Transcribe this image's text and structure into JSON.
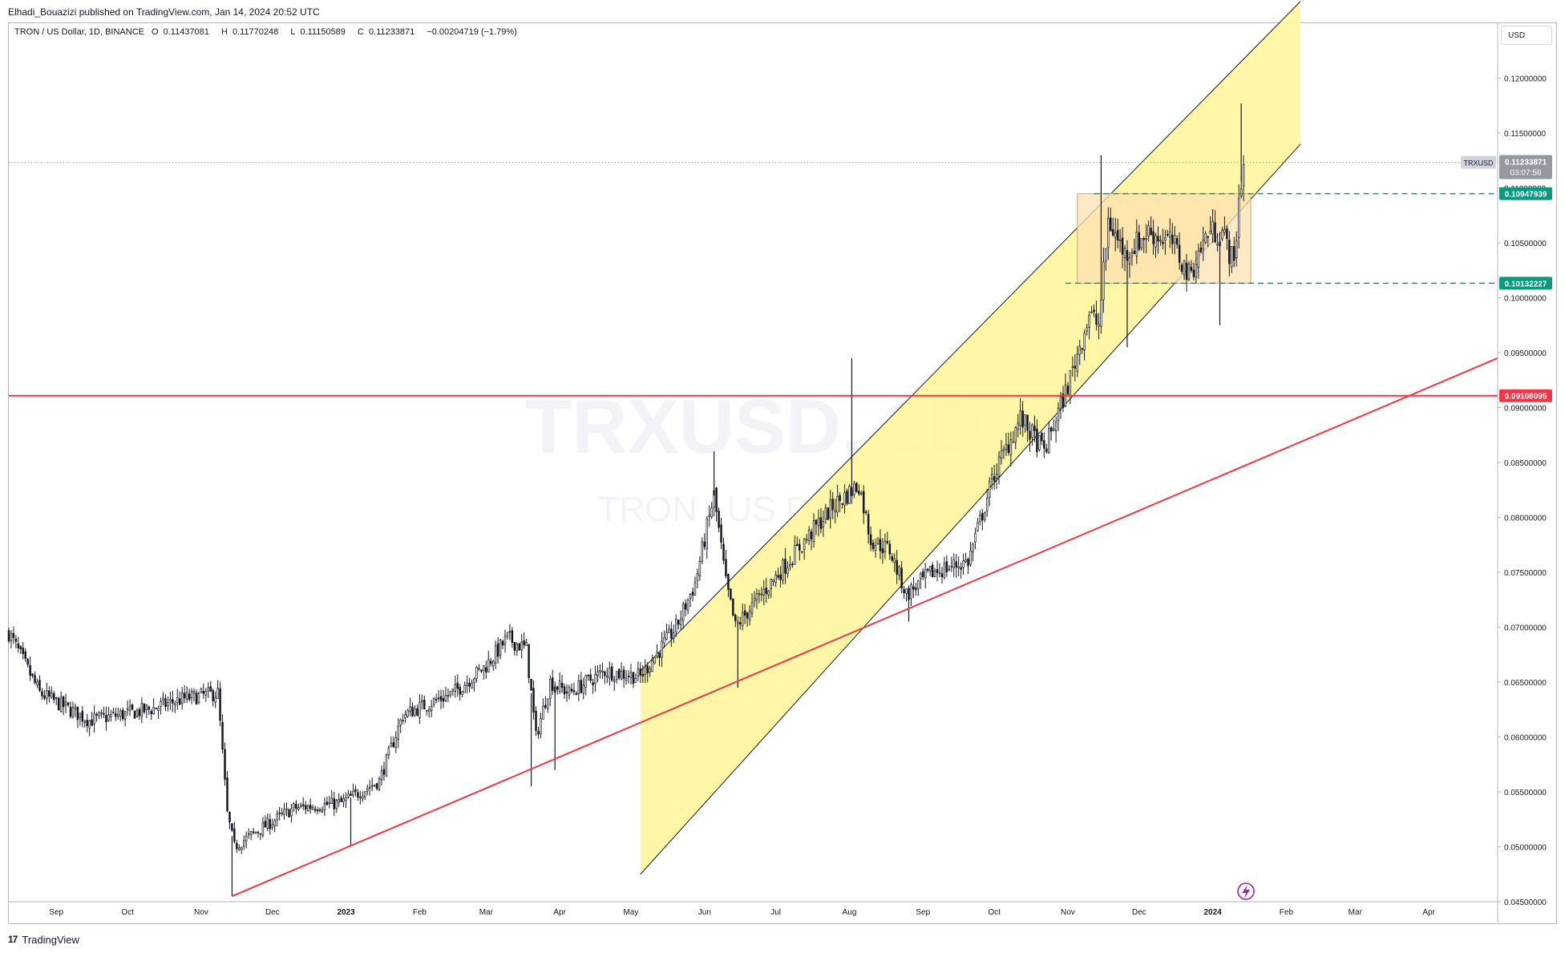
{
  "header": {
    "published_by": "Elhadi_Bouazizi published on TradingView.com, Jan 14, 2024 20:52 UTC"
  },
  "legend": {
    "symbol_desc": "TRON / US Dollar, 1D, BINANCE",
    "open_label": "O",
    "open": "0.11437081",
    "high_label": "H",
    "high": "0.11770248",
    "low_label": "L",
    "low": "0.11150589",
    "close_label": "C",
    "close": "0.11233871",
    "change": "−0.00204719 (−1.79%)"
  },
  "watermark": {
    "symbol": "TRXUSD, 1D",
    "name": "TRON / US Dollar"
  },
  "currency": "USD",
  "footer": {
    "brand": "TradingView",
    "logo": "17"
  },
  "colors": {
    "up": "#131722",
    "down": "#131722",
    "channel_fill": "#fff59d",
    "channel_line": "#131722",
    "box_fill": "#ffe0b2",
    "box_inner": "#ffcc80",
    "red_line": "#f23645",
    "dashed": "#089981",
    "current_price_bg": "#9598a1",
    "level_bg": "#089981",
    "red_bg": "#f23645"
  },
  "price_scale": {
    "ticks": [
      "0.12000000",
      "0.11500000",
      "0.11000000",
      "0.10500000",
      "0.10000000",
      "0.09500000",
      "0.09000000",
      "0.08500000",
      "0.08000000",
      "0.07500000",
      "0.07000000",
      "0.06500000",
      "0.06000000",
      "0.05500000",
      "0.05000000",
      "0.04500000"
    ],
    "current_symbol": "TRXUSD",
    "current_price": "0.11233871",
    "countdown": "03:07:56",
    "level_upper": "0.10947939",
    "level_lower": "0.10132227",
    "level_red": "0.09108095"
  },
  "time_scale": {
    "labels": [
      "Sep",
      "Oct",
      "Nov",
      "Dec",
      "2023",
      "Feb",
      "Mar",
      "Apr",
      "May",
      "Jun",
      "Jul",
      "Aug",
      "Sep",
      "Oct",
      "Nov",
      "Dec",
      "2024",
      "Feb",
      "Mar",
      "Apr"
    ],
    "bold": [
      "2023",
      "2024"
    ]
  },
  "chart_data": {
    "type": "candlestick",
    "symbol": "TRXUSD",
    "timeframe": "1D",
    "exchange": "BINANCE",
    "ylim": [
      0.045,
      0.125
    ],
    "x_range": [
      "2022-08-12",
      "2024-04-30"
    ],
    "price_path": [
      [
        "2022-08-12",
        0.0695
      ],
      [
        "2022-08-25",
        0.064
      ],
      [
        "2022-09-15",
        0.0615
      ],
      [
        "2022-10-10",
        0.0625
      ],
      [
        "2022-10-25",
        0.0635
      ],
      [
        "2022-11-08",
        0.064
      ],
      [
        "2022-11-12",
        0.053
      ],
      [
        "2022-11-15",
        0.05
      ],
      [
        "2022-11-25",
        0.0515
      ],
      [
        "2022-12-10",
        0.0535
      ],
      [
        "2022-12-30",
        0.054
      ],
      [
        "2023-01-15",
        0.056
      ],
      [
        "2023-01-25",
        0.062
      ],
      [
        "2023-02-15",
        0.064
      ],
      [
        "2023-03-01",
        0.0665
      ],
      [
        "2023-03-10",
        0.069
      ],
      [
        "2023-03-18",
        0.068
      ],
      [
        "2023-03-22",
        0.06
      ],
      [
        "2023-03-28",
        0.065
      ],
      [
        "2023-04-05",
        0.064
      ],
      [
        "2023-04-20",
        0.066
      ],
      [
        "2023-05-05",
        0.0655
      ],
      [
        "2023-05-20",
        0.07
      ],
      [
        "2023-05-28",
        0.074
      ],
      [
        "2023-06-05",
        0.082
      ],
      [
        "2023-06-10",
        0.074
      ],
      [
        "2023-06-14",
        0.07
      ],
      [
        "2023-06-25",
        0.073
      ],
      [
        "2023-07-10",
        0.077
      ],
      [
        "2023-07-25",
        0.081
      ],
      [
        "2023-08-05",
        0.083
      ],
      [
        "2023-08-10",
        0.078
      ],
      [
        "2023-08-18",
        0.077
      ],
      [
        "2023-08-25",
        0.073
      ],
      [
        "2023-09-05",
        0.075
      ],
      [
        "2023-09-20",
        0.076
      ],
      [
        "2023-10-01",
        0.084
      ],
      [
        "2023-10-12",
        0.089
      ],
      [
        "2023-10-22",
        0.086
      ],
      [
        "2023-11-01",
        0.092
      ],
      [
        "2023-11-10",
        0.0985
      ],
      [
        "2023-11-14",
        0.0975
      ],
      [
        "2023-11-18",
        0.107
      ],
      [
        "2023-11-25",
        0.104
      ],
      [
        "2023-12-05",
        0.106
      ],
      [
        "2023-12-15",
        0.105
      ],
      [
        "2023-12-22",
        0.102
      ],
      [
        "2023-12-30",
        0.106
      ],
      [
        "2024-01-05",
        0.106
      ],
      [
        "2024-01-10",
        0.103
      ],
      [
        "2024-01-12",
        0.109
      ],
      [
        "2024-01-14",
        0.1123
      ]
    ],
    "wicks": [
      [
        "2022-11-14",
        0.0455,
        "low"
      ],
      [
        "2023-01-03",
        0.05,
        "low"
      ],
      [
        "2023-03-20",
        0.0555,
        "low"
      ],
      [
        "2023-03-30",
        0.057,
        "low"
      ],
      [
        "2023-06-05",
        0.086,
        "high"
      ],
      [
        "2023-06-15",
        0.0645,
        "high-low"
      ],
      [
        "2023-08-02",
        0.0945,
        "high"
      ],
      [
        "2023-08-26",
        0.0705,
        "low"
      ],
      [
        "2023-11-15",
        0.113,
        "high"
      ],
      [
        "2023-11-26",
        0.0955,
        "low"
      ],
      [
        "2024-01-04",
        0.0975,
        "low"
      ],
      [
        "2024-01-13",
        0.1177,
        "high"
      ]
    ],
    "drawings": {
      "channel": {
        "upper_line": [
          [
            "2023-05-05",
            0.066
          ],
          [
            "2024-02-07",
            0.127
          ]
        ],
        "lower_line": [
          [
            "2023-05-05",
            0.0475
          ],
          [
            "2024-02-07",
            0.114
          ]
        ]
      },
      "range_box": {
        "x": [
          "2023-11-05",
          "2024-01-17"
        ],
        "y": [
          0.10132227,
          0.10947939
        ]
      },
      "support_trendline": [
        [
          "2022-11-14",
          0.0455
        ],
        [
          "2024-04-30",
          0.0945
        ]
      ],
      "horizontal_red": 0.09108095,
      "dashed_upper": {
        "x_start": "2023-11-12",
        "value": 0.10947939
      },
      "dashed_lower": {
        "x_start": "2023-10-31",
        "value": 0.10132227
      }
    }
  }
}
